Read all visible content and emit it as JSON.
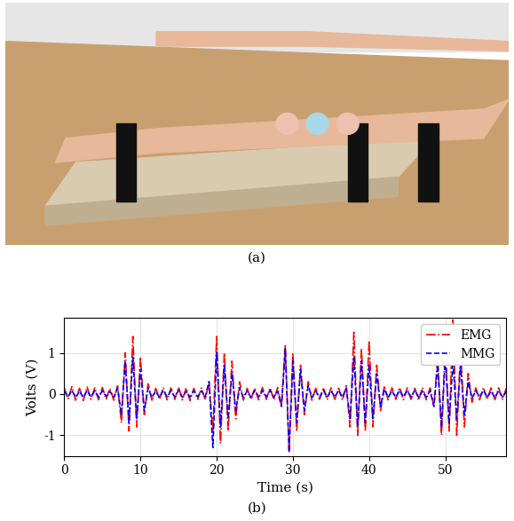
{
  "photo": {
    "caption": "(a)"
  },
  "chart_data": {
    "type": "line",
    "caption": "(b)",
    "x_label": "Time (s)",
    "y_label": "Volts (V)",
    "x": [
      0,
      0.5,
      1,
      1.5,
      2,
      2.5,
      3,
      3.5,
      4,
      4.5,
      5,
      5.5,
      6,
      6.5,
      7,
      7.5,
      8,
      8.5,
      9,
      9.5,
      10,
      10.5,
      11,
      11.5,
      12,
      12.5,
      13,
      13.5,
      14,
      14.5,
      15,
      15.5,
      16,
      16.5,
      17,
      17.5,
      18,
      18.5,
      19,
      19.5,
      20,
      20.5,
      21,
      21.5,
      22,
      22.5,
      23,
      23.5,
      24,
      24.5,
      25,
      25.5,
      26,
      26.5,
      27,
      27.5,
      28,
      28.5,
      29,
      29.5,
      30,
      30.5,
      31,
      31.5,
      32,
      32.5,
      33,
      33.5,
      34,
      34.5,
      35,
      35.5,
      36,
      36.5,
      37,
      37.5,
      38,
      38.5,
      39,
      39.5,
      40,
      40.5,
      41,
      41.5,
      42,
      42.5,
      43,
      43.5,
      44,
      44.5,
      45,
      45.5,
      46,
      46.5,
      47,
      47.5,
      48,
      48.5,
      49,
      49.5,
      50,
      50.5,
      51,
      51.5,
      52,
      52.5,
      53,
      53.5,
      54,
      54.5,
      55,
      55.5,
      56,
      56.5,
      57,
      57.5,
      58
    ],
    "series": [
      {
        "name": "EMG",
        "color": "#ff0000",
        "line_style": "dashdot",
        "values": [
          0.15,
          -0.12,
          0.18,
          -0.15,
          0.14,
          -0.16,
          0.17,
          -0.13,
          0.15,
          -0.14,
          0.16,
          -0.12,
          0.14,
          -0.15,
          0.2,
          -0.7,
          1.0,
          -0.9,
          1.4,
          -0.8,
          0.9,
          -0.5,
          0.25,
          -0.15,
          0.14,
          -0.13,
          0.16,
          -0.14,
          0.15,
          -0.13,
          0.17,
          -0.14,
          0.15,
          -0.16,
          0.14,
          -0.13,
          0.15,
          -0.14,
          0.3,
          -0.9,
          1.4,
          -1.2,
          1.0,
          -0.9,
          0.8,
          -0.6,
          0.3,
          -0.15,
          0.14,
          -0.13,
          0.15,
          -0.14,
          0.16,
          -0.13,
          0.15,
          -0.14,
          0.16,
          -0.3,
          1.2,
          -1.4,
          1.0,
          -0.9,
          0.7,
          -0.5,
          0.3,
          -0.15,
          0.14,
          -0.13,
          0.16,
          -0.14,
          0.15,
          -0.13,
          0.14,
          -0.15,
          0.2,
          -0.8,
          1.5,
          -1.0,
          1.1,
          -0.9,
          1.3,
          -0.8,
          0.7,
          -0.4,
          0.2,
          -0.14,
          0.15,
          -0.13,
          0.16,
          -0.14,
          0.15,
          -0.13,
          0.14,
          -0.15,
          0.16,
          -0.14,
          0.15,
          -0.3,
          0.9,
          -1.0,
          1.2,
          -0.9,
          1.8,
          -1.0,
          1.1,
          -0.8,
          0.5,
          -0.2,
          0.15,
          -0.14,
          0.16,
          -0.13,
          0.15,
          -0.14,
          0.15,
          -0.13,
          0.14
        ]
      },
      {
        "name": "MMG",
        "color": "#0000ff",
        "line_style": "dashed",
        "values": [
          0.08,
          -0.07,
          0.09,
          -0.08,
          0.07,
          -0.08,
          0.09,
          -0.07,
          0.08,
          -0.07,
          0.08,
          -0.06,
          0.07,
          -0.08,
          0.15,
          -0.5,
          0.8,
          -0.7,
          0.9,
          -0.6,
          0.6,
          -0.4,
          0.15,
          -0.08,
          0.07,
          -0.08,
          0.09,
          -0.07,
          0.08,
          -0.07,
          0.09,
          -0.08,
          0.07,
          -0.08,
          0.08,
          -0.07,
          0.08,
          -0.07,
          0.3,
          -1.3,
          1.0,
          -0.8,
          0.7,
          -0.6,
          0.5,
          -0.4,
          0.15,
          -0.08,
          0.07,
          -0.08,
          0.09,
          -0.07,
          0.08,
          -0.07,
          0.09,
          -0.08,
          0.07,
          -0.3,
          1.1,
          -1.4,
          0.8,
          -0.7,
          0.6,
          -0.4,
          0.2,
          -0.08,
          0.07,
          -0.08,
          0.09,
          -0.07,
          0.08,
          -0.07,
          0.09,
          -0.08,
          0.15,
          -0.6,
          0.9,
          -0.8,
          0.8,
          -0.7,
          0.7,
          -0.6,
          0.5,
          -0.3,
          0.12,
          -0.08,
          0.07,
          -0.08,
          0.09,
          -0.07,
          0.08,
          -0.07,
          0.09,
          -0.08,
          0.07,
          -0.08,
          0.08,
          -0.3,
          0.7,
          -0.8,
          0.9,
          -0.7,
          0.8,
          -0.6,
          0.7,
          -0.5,
          0.3,
          -0.1,
          0.08,
          -0.07,
          0.09,
          -0.08,
          0.07,
          -0.08,
          0.08,
          -0.07,
          0.06
        ]
      }
    ],
    "xlim": [
      0,
      58
    ],
    "ylim": [
      -1.5,
      1.85
    ],
    "xticks": [
      0,
      10,
      20,
      30,
      40,
      50
    ],
    "yticks": [
      -1,
      0,
      1
    ],
    "grid": true,
    "legend": "upper right"
  }
}
